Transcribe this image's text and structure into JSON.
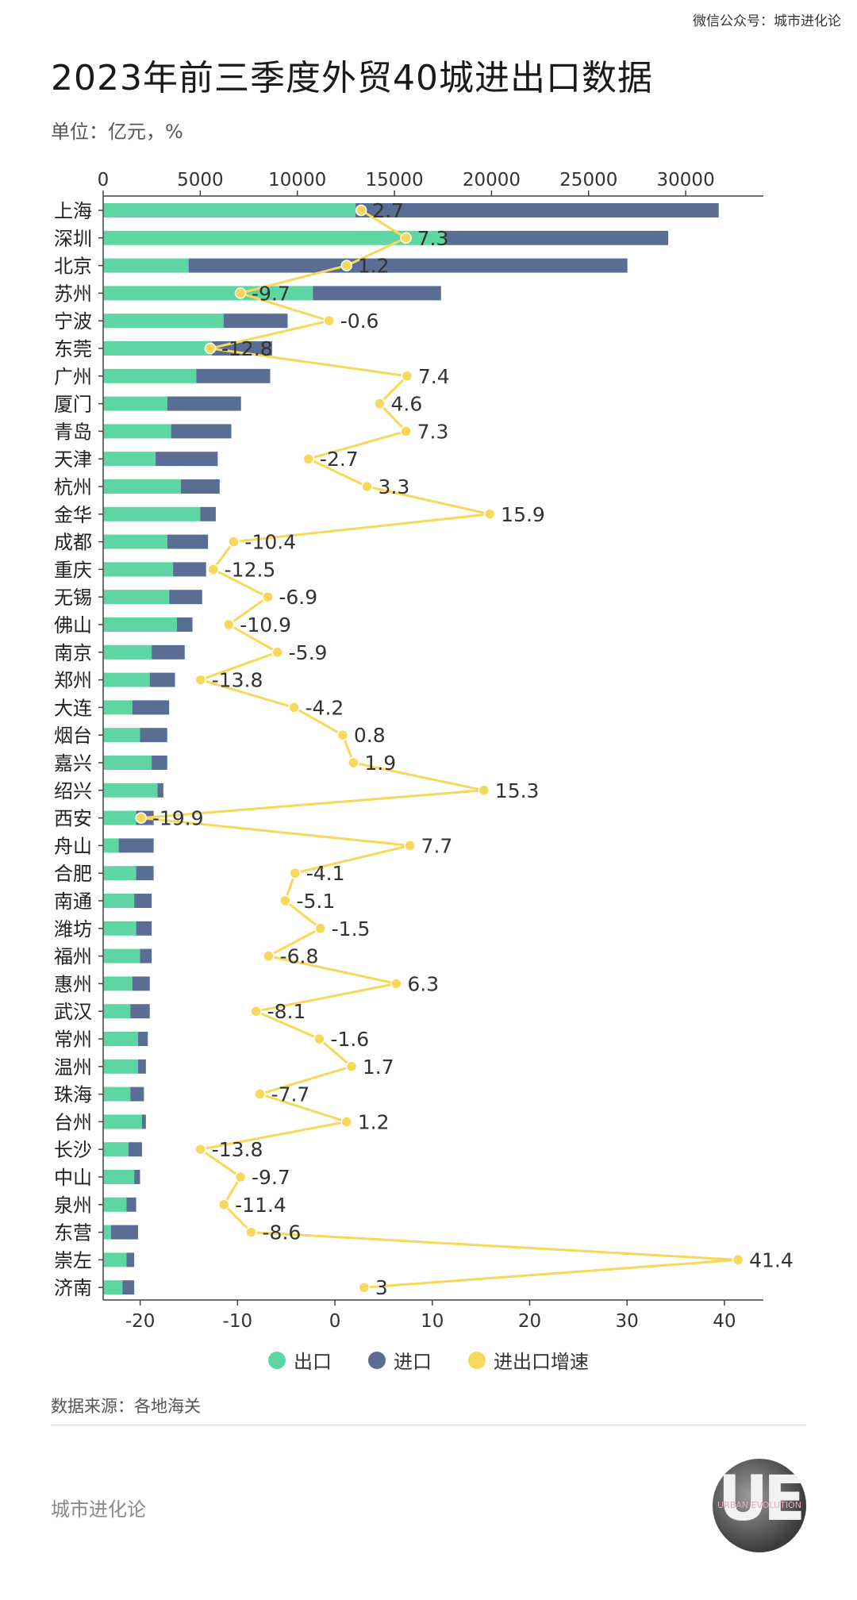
{
  "header": {
    "credit": "微信公众号：城市进化论",
    "title": "2023年前三季度外贸40城进出口数据",
    "unit": "单位：亿元，%"
  },
  "footer": {
    "source": "数据来源：各地海关",
    "brand": "城市进化论",
    "logo_big": "UE",
    "logo_small": "URBAN EVOLUTION"
  },
  "colors": {
    "export": "#5dd6a4",
    "import": "#5a6d94",
    "growth": "#f7d85a"
  },
  "chart_data": {
    "type": "bar",
    "orientation": "horizontal-stacked-with-line",
    "title": "2023年前三季度外贸40城进出口数据",
    "categories": [
      "上海",
      "深圳",
      "北京",
      "苏州",
      "宁波",
      "东莞",
      "广州",
      "厦门",
      "青岛",
      "天津",
      "杭州",
      "金华",
      "成都",
      "重庆",
      "无锡",
      "佛山",
      "南京",
      "郑州",
      "大连",
      "烟台",
      "嘉兴",
      "绍兴",
      "西安",
      "舟山",
      "合肥",
      "南通",
      "潍坊",
      "福州",
      "惠州",
      "武汉",
      "常州",
      "温州",
      "珠海",
      "台州",
      "长沙",
      "中山",
      "泉州",
      "东营",
      "崇左",
      "济南"
    ],
    "series": [
      {
        "name": "出口",
        "axis": "top",
        "values": [
          13000,
          17600,
          4400,
          10800,
          6200,
          5600,
          4800,
          3300,
          3500,
          2700,
          4000,
          5000,
          3300,
          3600,
          3400,
          3800,
          2500,
          2400,
          1500,
          1900,
          2500,
          2800,
          1700,
          800,
          1700,
          1600,
          1700,
          1900,
          1500,
          1400,
          1800,
          1800,
          1400,
          2000,
          1300,
          1600,
          1200,
          400,
          1200,
          1000
        ]
      },
      {
        "name": "进口",
        "axis": "top",
        "values": [
          18700,
          11500,
          22600,
          6600,
          3300,
          3100,
          3800,
          3800,
          3100,
          3200,
          2000,
          800,
          2100,
          1700,
          1700,
          800,
          1700,
          1300,
          1900,
          1400,
          800,
          300,
          900,
          1800,
          900,
          900,
          800,
          600,
          900,
          1000,
          500,
          400,
          700,
          200,
          700,
          300,
          500,
          1400,
          400,
          600
        ]
      },
      {
        "name": "进出口增速",
        "axis": "bottom",
        "values": [
          2.7,
          7.3,
          1.2,
          -9.7,
          -0.6,
          -12.8,
          7.4,
          4.6,
          7.3,
          -2.7,
          3.3,
          15.9,
          -10.4,
          -12.5,
          -6.9,
          -10.9,
          -5.9,
          -13.8,
          -4.2,
          0.8,
          1.9,
          15.3,
          -19.9,
          7.7,
          -4.1,
          -5.1,
          -1.5,
          -6.8,
          6.3,
          -8.1,
          -1.6,
          1.7,
          -7.7,
          1.2,
          -13.8,
          -9.7,
          -11.4,
          -8.6,
          41.4,
          3
        ]
      }
    ],
    "top_axis": {
      "ticks": [
        0,
        5000,
        10000,
        15000,
        20000,
        25000,
        30000
      ],
      "tick_labels": [
        "0",
        "5000",
        "10000",
        "15000",
        "20000",
        "25000",
        "30000"
      ],
      "range": [
        0,
        34000
      ]
    },
    "bottom_axis": {
      "ticks": [
        -20,
        -10,
        0,
        10,
        20,
        30,
        40
      ],
      "tick_labels": [
        "-20",
        "-10",
        "0",
        "10",
        "20",
        "30",
        "40"
      ],
      "range": [
        -23.8,
        44
      ]
    },
    "data_labels": [
      "2.7",
      "7.3",
      "1.2",
      "-9.7",
      "-0.6",
      "-12.8",
      "7.4",
      "4.6",
      "7.3",
      "-2.7",
      "3.3",
      "15.9",
      "-10.4",
      "-12.5",
      "-6.9",
      "-10.9",
      "-5.9",
      "-13.8",
      "-4.2",
      "0.8",
      "1.9",
      "15.3",
      "-19.9",
      "7.7",
      "-4.1",
      "-5.1",
      "-1.5",
      "-6.8",
      "6.3",
      "-8.1",
      "-1.6",
      "1.7",
      "-7.7",
      "1.2",
      "-13.8",
      "-9.7",
      "-11.4",
      "-8.6",
      "41.4",
      "3"
    ],
    "legend": {
      "position": "bottom-center",
      "items": [
        "出口",
        "进口",
        "进出口增速"
      ]
    },
    "grid": false
  }
}
